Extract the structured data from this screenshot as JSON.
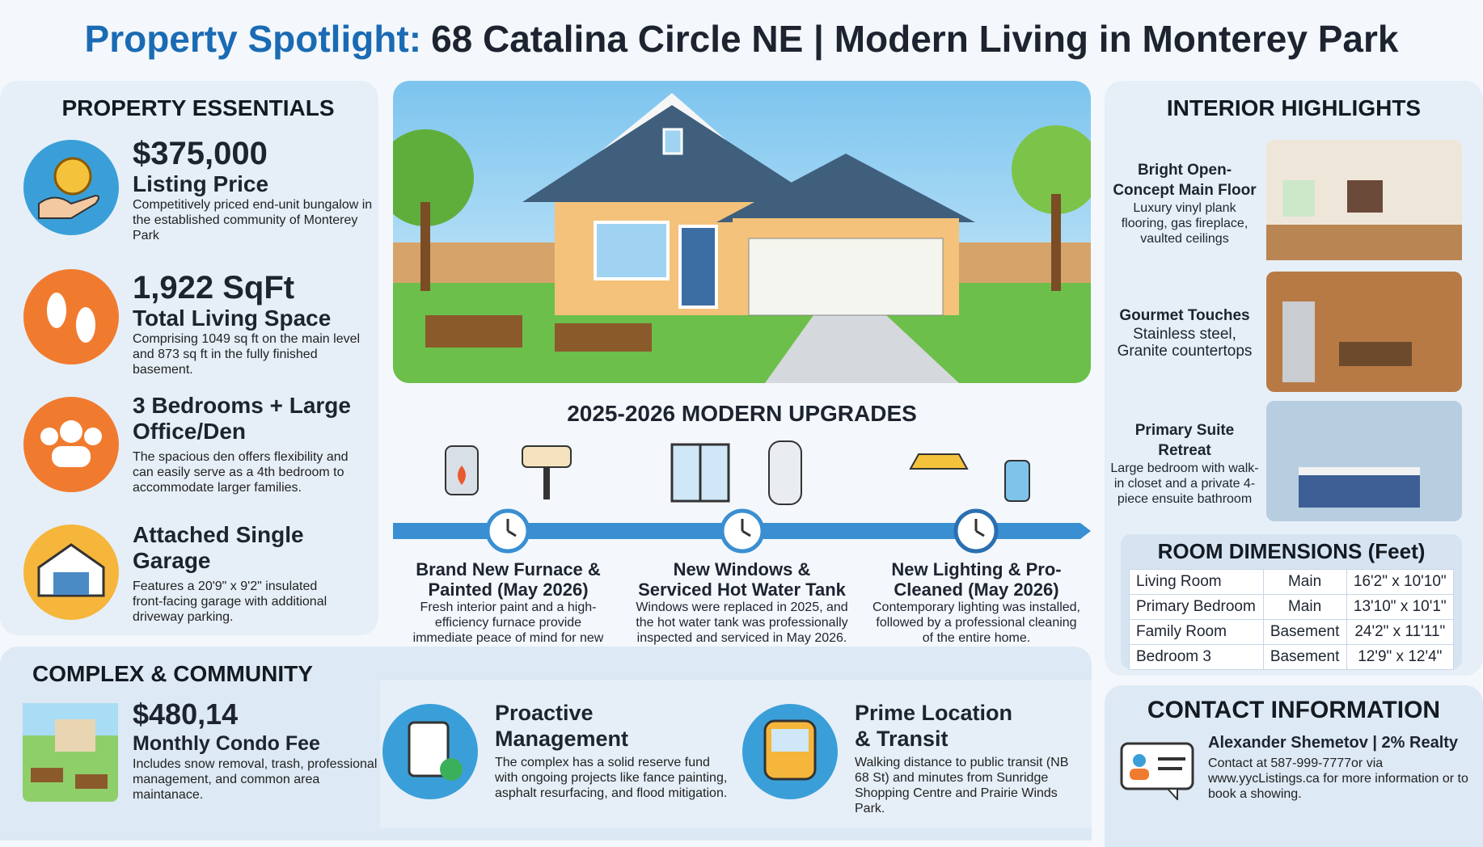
{
  "header": {
    "title_prefix": "Property Spotlight:",
    "title": "68 Catalina Circle NE | Modern Living in Monterey Park"
  },
  "essentials": {
    "heading": "PROPERTY ESSENTIALS",
    "items": [
      {
        "value": "$375,000",
        "label": "Listing Price",
        "text": "Competitively priced end-unit bungalow in the established community of Monterey Park"
      },
      {
        "value": "1,922 SqFt",
        "label": "Total Living Space",
        "text": "Comprising 1049 sq ft on the main level and 873 sq ft in the fully finished basement."
      },
      {
        "value": "3 Bedrooms + Large Office/Den",
        "text": "The spacious den offers flexibility and can easily serve as a 4th bedroom to accommodate larger families."
      },
      {
        "value": "Attached Single Garage",
        "text": "Features a 20'9\" x 9'2\" insulated front-facing garage with additional driveway parking."
      }
    ]
  },
  "upgrades": {
    "heading": "2025-2026 MODERN UPGRADES",
    "items": [
      {
        "title": "Brand New Furnace & Painted (May 2026)",
        "text": "Fresh interior paint and a high-efficiency furnace provide immediate peace of mind for new owners."
      },
      {
        "title": "New Windows & Serviced Hot Water Tank",
        "text": "Windows were replaced in 2025, and the hot water tank was professionally inspected and serviced in May 2026."
      },
      {
        "title": "New Lighting & Pro-Cleaned (May 2026)",
        "text": "Contemporary lighting was installed, followed by a professional cleaning of the entire home."
      }
    ]
  },
  "interior": {
    "heading": "INTERIOR HIGHLIGHTS",
    "items": [
      {
        "title": "Bright Open-Concept Main Floor",
        "text": "Luxury vinyl plank flooring, gas fireplace, vaulted ceilings"
      },
      {
        "title": "Gourmet Touches",
        "text": "Stainless steel, Granite countertops"
      },
      {
        "title": "Primary Suite Retreat",
        "text": "Large bedroom with walk-in closet and a private 4-piece ensuite bathroom"
      }
    ]
  },
  "rooms": {
    "heading": "ROOM DIMENSIONS (Feet)",
    "rows": [
      [
        "Living Room",
        "Main",
        "16'2\" x 10'10\""
      ],
      [
        "Primary Bedroom",
        "Main",
        "13'10\" x 10'1\""
      ],
      [
        "Family Room",
        "Basement",
        "24'2\" x 11'11\""
      ],
      [
        "Bedroom 3",
        "Basement",
        "12'9\" x 12'4\""
      ]
    ]
  },
  "community": {
    "heading": "COMPLEX & COMMUNITY",
    "items": [
      {
        "title": "$480,14",
        "subtitle": "Monthly Condo Fee",
        "text": "Includes snow removal, trash, professional management, and common area maintanace."
      },
      {
        "title": "Proactive Management",
        "text": "The complex has a solid reserve fund with ongoing projects like fance painting, asphalt resurfacing, and flood mitigation."
      },
      {
        "title": "Prime Location & Transit",
        "text": "Walking distance to public transit (NB 68 St) and minutes from Sunridge Shopping Centre and Prairie Winds Park."
      }
    ]
  },
  "contact": {
    "heading": "CONTACT INFORMATION",
    "name": "Alexander Shemetov | 2% Realty",
    "text": "Contact at 587-999-7777or via www.yycListings.ca for more information or to book a showing."
  }
}
